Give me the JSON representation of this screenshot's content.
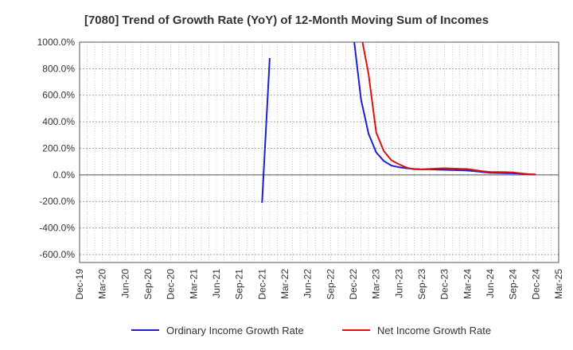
{
  "chart_data": {
    "type": "line",
    "title": "[7080]  Trend of Growth Rate (YoY) of 12-Month Moving Sum of Incomes",
    "xlabel": "",
    "ylabel": "",
    "ylim": [
      -660,
      1000
    ],
    "y_ticks": [
      "1000.0%",
      "800.0%",
      "600.0%",
      "400.0%",
      "200.0%",
      "0.0%",
      "-200.0%",
      "-400.0%",
      "-600.0%"
    ],
    "y_tick_values": [
      1000,
      800,
      600,
      400,
      200,
      0,
      -200,
      -400,
      -600
    ],
    "x_ticks": [
      "Dec-19",
      "Mar-20",
      "Jun-20",
      "Sep-20",
      "Dec-20",
      "Mar-21",
      "Jun-21",
      "Sep-21",
      "Dec-21",
      "Mar-22",
      "Jun-22",
      "Sep-22",
      "Dec-22",
      "Mar-23",
      "Jun-23",
      "Sep-23",
      "Dec-23",
      "Mar-24",
      "Jun-24",
      "Sep-24",
      "Dec-24",
      "Mar-25"
    ],
    "grid": true,
    "legend_position": "bottom",
    "series": [
      {
        "name": "Ordinary Income Growth Rate",
        "color": "#1f1fcc",
        "segments": [
          [
            [
              "Dec-21",
              -210
            ],
            [
              "Jan-22",
              880
            ]
          ],
          [
            [
              "Dec-22",
              1060
            ],
            [
              "Jan-23",
              570
            ],
            [
              "Feb-23",
              310
            ],
            [
              "Mar-23",
              170
            ],
            [
              "Apr-23",
              105
            ],
            [
              "May-23",
              70
            ],
            [
              "Jun-23",
              58
            ],
            [
              "Jul-23",
              50
            ],
            [
              "Aug-23",
              45
            ],
            [
              "Sep-23",
              42
            ],
            [
              "Oct-23",
              42
            ],
            [
              "Nov-23",
              40
            ],
            [
              "Dec-23",
              38
            ],
            [
              "Jan-24",
              37
            ],
            [
              "Feb-24",
              35
            ],
            [
              "Mar-24",
              33
            ],
            [
              "Apr-24",
              28
            ],
            [
              "May-24",
              22
            ],
            [
              "Jun-24",
              16
            ],
            [
              "Jul-24",
              14
            ],
            [
              "Aug-24",
              13
            ],
            [
              "Sep-24",
              12
            ],
            [
              "Oct-24",
              9
            ],
            [
              "Nov-24",
              5
            ],
            [
              "Dec-24",
              2
            ]
          ]
        ]
      },
      {
        "name": "Net Income Growth Rate",
        "color": "#dd1111",
        "segments": [
          [
            [
              "Jan-23",
              1060
            ],
            [
              "Feb-23",
              760
            ],
            [
              "Mar-23",
              320
            ],
            [
              "Apr-23",
              180
            ],
            [
              "May-23",
              110
            ],
            [
              "Jun-23",
              80
            ],
            [
              "Jul-23",
              55
            ],
            [
              "Aug-23",
              42
            ],
            [
              "Sep-23",
              42
            ],
            [
              "Oct-23",
              45
            ],
            [
              "Nov-23",
              48
            ],
            [
              "Dec-23",
              50
            ],
            [
              "Jan-24",
              48
            ],
            [
              "Feb-24",
              46
            ],
            [
              "Mar-24",
              44
            ],
            [
              "Apr-24",
              36
            ],
            [
              "May-24",
              28
            ],
            [
              "Jun-24",
              22
            ],
            [
              "Jul-24",
              22
            ],
            [
              "Aug-24",
              21
            ],
            [
              "Sep-24",
              19
            ],
            [
              "Oct-24",
              12
            ],
            [
              "Nov-24",
              6
            ],
            [
              "Dec-24",
              3
            ]
          ]
        ]
      }
    ]
  }
}
